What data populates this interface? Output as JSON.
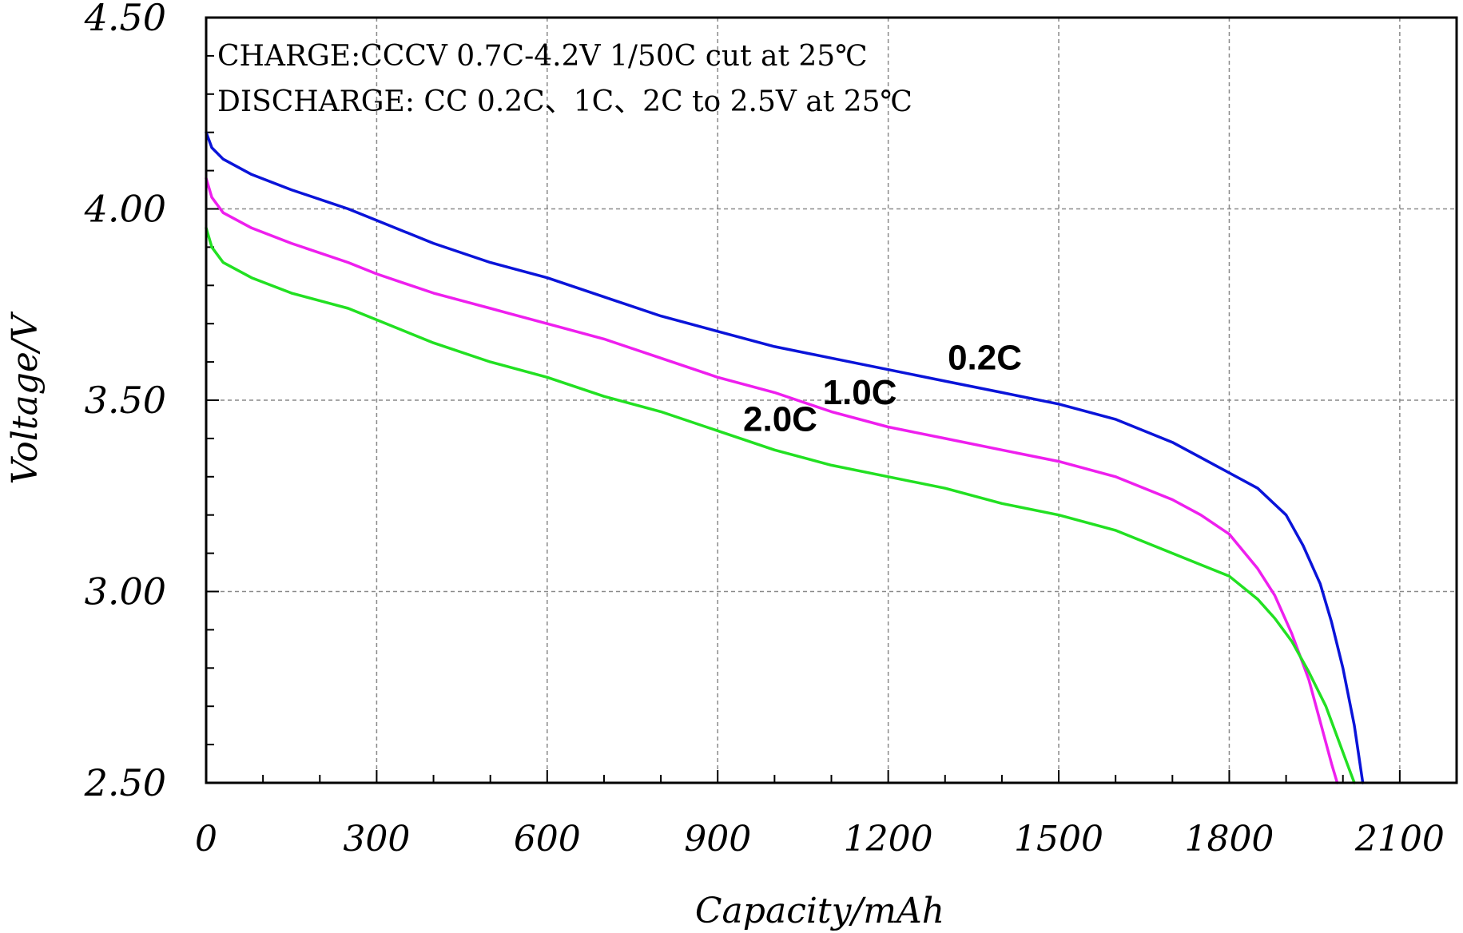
{
  "chart_data": {
    "type": "line",
    "xlabel": "Capacity/mAh",
    "ylabel": "Voltage/V",
    "xlim": [
      0,
      2200
    ],
    "ylim": [
      2.5,
      4.5
    ],
    "x_ticks": [
      "0",
      "300",
      "600",
      "900",
      "1200",
      "1500",
      "1800",
      "2100"
    ],
    "y_ticks": [
      "2.50",
      "3.00",
      "3.50",
      "4.00",
      "4.50"
    ],
    "grid": true,
    "annotations": [
      "CHARGE:CCCV 0.7C-4.2V 1/50C cut at 25℃",
      "DISCHARGE: CC 0.2C、1C、2C to 2.5V at 25℃"
    ],
    "series": [
      {
        "name": "0.2C",
        "color": "#0a14d9",
        "label_at": [
          1370,
          3.58
        ],
        "x": [
          0,
          10,
          30,
          80,
          150,
          250,
          300,
          400,
          500,
          600,
          700,
          800,
          900,
          1000,
          1100,
          1200,
          1300,
          1400,
          1500,
          1600,
          1700,
          1750,
          1800,
          1850,
          1900,
          1930,
          1960,
          1980,
          2000,
          2020,
          2035
        ],
        "y": [
          4.2,
          4.16,
          4.13,
          4.09,
          4.05,
          4.0,
          3.97,
          3.91,
          3.86,
          3.82,
          3.77,
          3.72,
          3.68,
          3.64,
          3.61,
          3.58,
          3.55,
          3.52,
          3.49,
          3.45,
          3.39,
          3.35,
          3.31,
          3.27,
          3.2,
          3.12,
          3.02,
          2.92,
          2.8,
          2.65,
          2.5
        ]
      },
      {
        "name": "1.0C",
        "color": "#ee1fee",
        "label_at": [
          1150,
          3.49
        ],
        "x": [
          0,
          10,
          30,
          80,
          150,
          250,
          300,
          400,
          500,
          600,
          700,
          800,
          900,
          1000,
          1100,
          1200,
          1300,
          1400,
          1500,
          1600,
          1700,
          1750,
          1800,
          1850,
          1880,
          1910,
          1940,
          1960,
          1980,
          1990
        ],
        "y": [
          4.08,
          4.03,
          3.99,
          3.95,
          3.91,
          3.86,
          3.83,
          3.78,
          3.74,
          3.7,
          3.66,
          3.61,
          3.56,
          3.52,
          3.47,
          3.43,
          3.4,
          3.37,
          3.34,
          3.3,
          3.24,
          3.2,
          3.15,
          3.06,
          2.99,
          2.89,
          2.77,
          2.66,
          2.55,
          2.5
        ]
      },
      {
        "name": "2.0C",
        "color": "#22e022",
        "label_at": [
          1010,
          3.42
        ],
        "x": [
          0,
          10,
          30,
          80,
          150,
          250,
          300,
          400,
          500,
          600,
          700,
          800,
          900,
          1000,
          1100,
          1200,
          1300,
          1400,
          1500,
          1600,
          1700,
          1750,
          1800,
          1850,
          1880,
          1910,
          1940,
          1970,
          1990,
          2010,
          2020
        ],
        "y": [
          3.95,
          3.9,
          3.86,
          3.82,
          3.78,
          3.74,
          3.71,
          3.65,
          3.6,
          3.56,
          3.51,
          3.47,
          3.42,
          3.37,
          3.33,
          3.3,
          3.27,
          3.23,
          3.2,
          3.16,
          3.1,
          3.07,
          3.04,
          2.98,
          2.93,
          2.87,
          2.79,
          2.7,
          2.62,
          2.54,
          2.5
        ]
      }
    ]
  }
}
